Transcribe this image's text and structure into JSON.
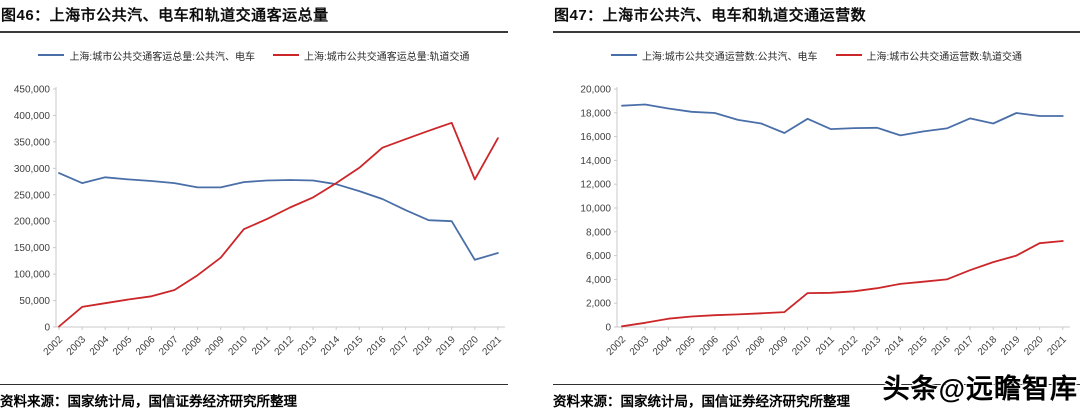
{
  "page": {
    "watermark_text": "头条@远瞻智库"
  },
  "figures": [
    {
      "title": "图46：上海市公共汽、电车和轨道交通客运总量",
      "source": "资料来源：国家统计局，国信证券经济研究所整理"
    },
    {
      "title": "图47：上海市公共汽、电车和轨道交通运营数",
      "source": "资料来源：国家统计局，国信证券经济研究所整理"
    }
  ],
  "chart_data": [
    {
      "type": "line",
      "title": "上海市公共汽、电车和轨道交通客运总量",
      "x": [
        2002,
        2003,
        2004,
        2005,
        2006,
        2007,
        2008,
        2009,
        2010,
        2011,
        2012,
        2013,
        2014,
        2015,
        2016,
        2017,
        2018,
        2019,
        2020,
        2021
      ],
      "series": [
        {
          "name": "上海:城市公共交通客运总量:公共汽、电车",
          "color": "#4a6fa8",
          "values": [
            291000,
            272000,
            283000,
            279000,
            276000,
            272000,
            264000,
            264000,
            274000,
            277000,
            278000,
            277000,
            270000,
            257000,
            242000,
            221000,
            202000,
            200000,
            127000,
            140000
          ]
        },
        {
          "name": "上海:城市公共交通客运总量:轨道交通",
          "color": "#cc2629",
          "values": [
            1000,
            38000,
            45000,
            52000,
            58000,
            70000,
            98000,
            131000,
            185000,
            204000,
            226000,
            245000,
            272000,
            301000,
            339000,
            355000,
            371000,
            386000,
            279000,
            357000
          ]
        }
      ],
      "ylim": [
        0,
        450000
      ],
      "ytick_step": 50000,
      "grid": false,
      "legend_position": "top-center"
    },
    {
      "type": "line",
      "title": "上海市公共汽、电车和轨道交通运营数",
      "x": [
        2002,
        2003,
        2004,
        2005,
        2006,
        2007,
        2008,
        2009,
        2010,
        2011,
        2012,
        2013,
        2014,
        2015,
        2016,
        2017,
        2018,
        2019,
        2020,
        2021
      ],
      "series": [
        {
          "name": "上海:城市公共交通运营数:公共汽、电车",
          "color": "#4a6fa8",
          "values": [
            18600,
            18700,
            18360,
            18080,
            17980,
            17400,
            17100,
            16300,
            17500,
            16630,
            16715,
            16740,
            16100,
            16440,
            16690,
            17530,
            17100,
            17980,
            17730,
            17730
          ]
        },
        {
          "name": "上海:城市公共交通运营数:轨道交通",
          "color": "#cc2629",
          "values": [
            60,
            350,
            700,
            880,
            990,
            1060,
            1150,
            1250,
            2850,
            2870,
            3000,
            3260,
            3620,
            3810,
            4000,
            4770,
            5450,
            6000,
            7040,
            7230
          ]
        }
      ],
      "ylim": [
        0,
        20000
      ],
      "ytick_step": 2000,
      "grid": false,
      "legend_position": "top-center"
    }
  ]
}
